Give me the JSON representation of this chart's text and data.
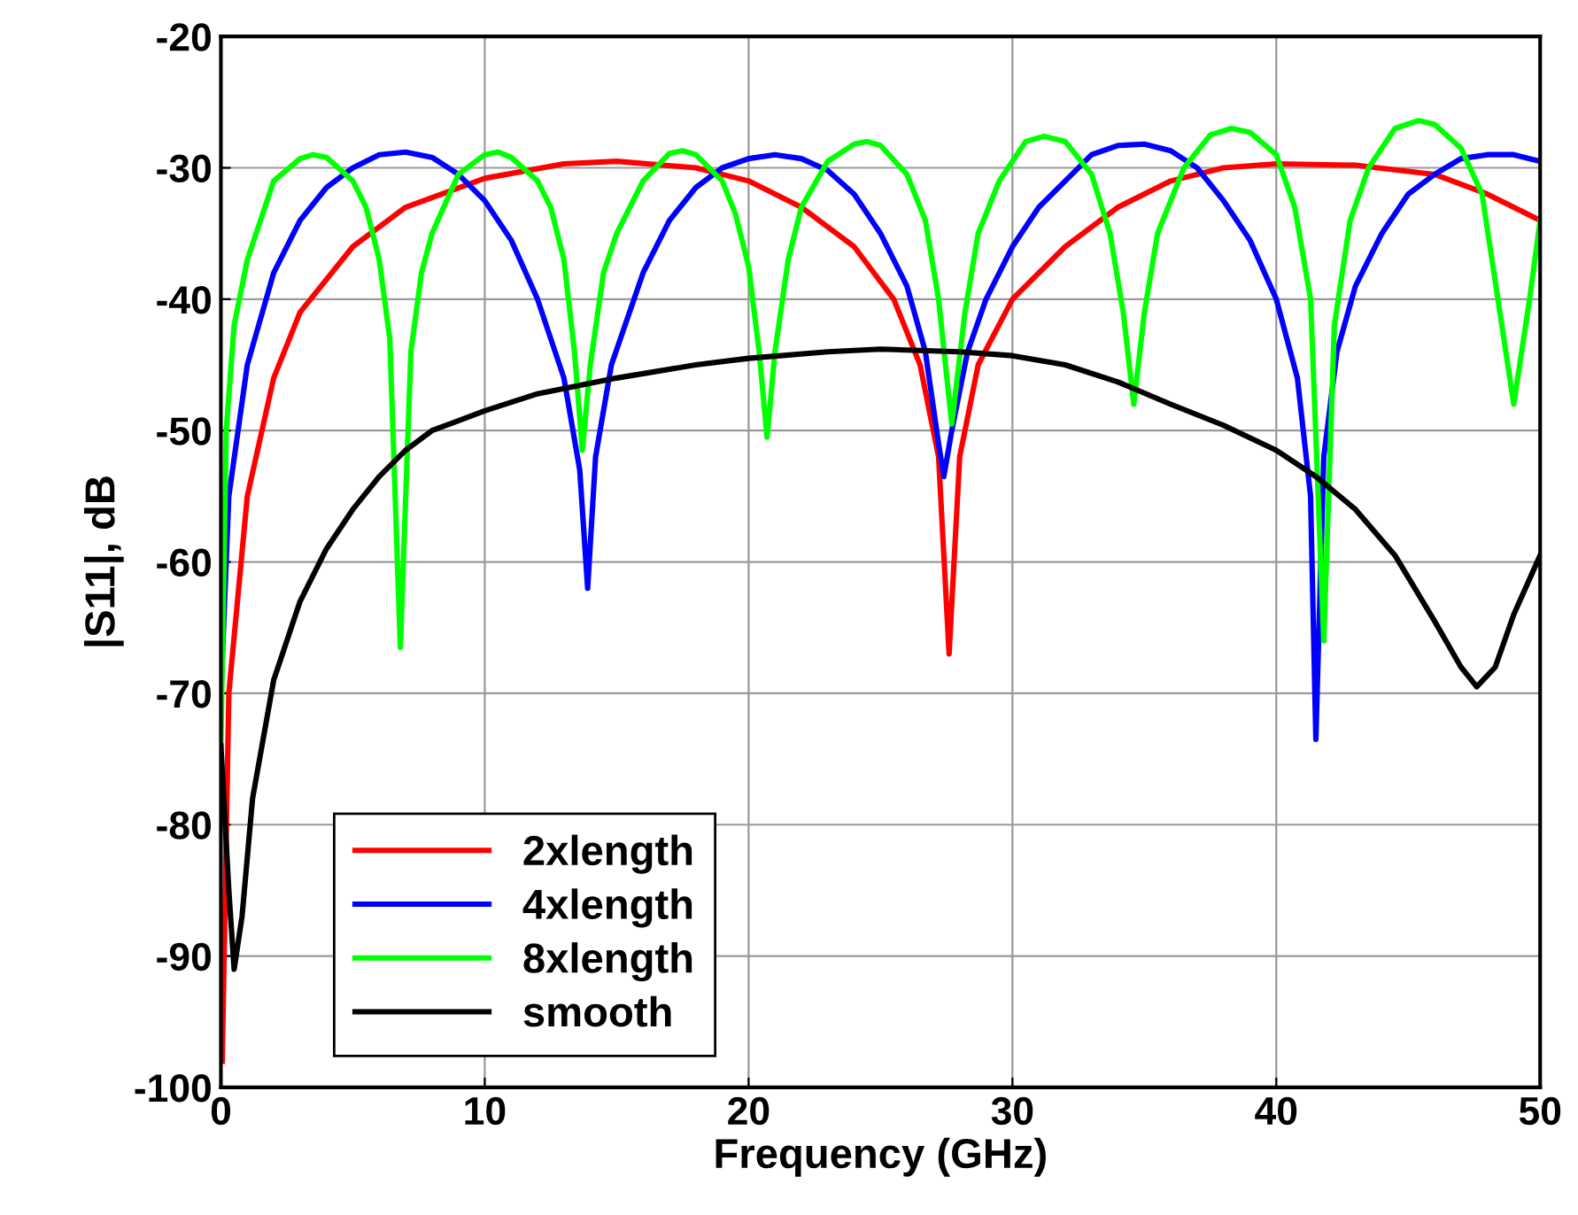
{
  "chart_data": {
    "type": "line",
    "xlabel": "Frequency (GHz)",
    "ylabel": "|S11|, dB",
    "xlim": [
      0,
      50
    ],
    "ylim": [
      -100,
      -20
    ],
    "xticks": [
      0,
      10,
      20,
      30,
      40,
      50
    ],
    "yticks": [
      -100,
      -90,
      -80,
      -70,
      -60,
      -50,
      -40,
      -30,
      -20
    ],
    "grid": true,
    "legend": "bottom left",
    "series": [
      {
        "name": "2xlength",
        "color": "#ff0000",
        "x": [
          0.05,
          0.3,
          1,
          2,
          3,
          5,
          7,
          10,
          13,
          15,
          18,
          20,
          22,
          24,
          25.5,
          26.5,
          27.2,
          27.6,
          28,
          28.7,
          30,
          32,
          34,
          36,
          38,
          40,
          43,
          46,
          48,
          50
        ],
        "values": [
          -98,
          -70,
          -55,
          -46,
          -41,
          -36,
          -33,
          -30.8,
          -29.7,
          -29.5,
          -30,
          -31,
          -33,
          -36,
          -40,
          -45,
          -52,
          -67,
          -52,
          -45,
          -40,
          -36,
          -33,
          -31,
          -30,
          -29.7,
          -29.8,
          -30.5,
          -32,
          -34
        ]
      },
      {
        "name": "4xlength",
        "color": "#0000ff",
        "x": [
          0,
          0.3,
          1,
          2,
          3,
          4,
          5,
          6,
          7,
          8,
          9,
          10,
          11,
          12,
          13,
          13.6,
          13.9,
          14.2,
          14.8,
          16,
          17,
          18,
          19,
          20,
          21,
          22,
          23,
          24,
          25,
          26,
          26.7,
          27.2,
          27.4,
          27.7,
          28.3,
          29,
          30,
          31,
          32,
          33,
          34,
          35,
          36,
          37,
          38,
          39,
          40,
          40.8,
          41.3,
          41.5,
          41.8,
          42.3,
          43,
          44,
          45,
          46,
          47,
          48,
          49,
          50
        ],
        "values": [
          -70,
          -55,
          -45,
          -38,
          -34,
          -31.5,
          -30,
          -29,
          -28.8,
          -29.2,
          -30.5,
          -32.5,
          -35.5,
          -40,
          -46,
          -53,
          -62,
          -52,
          -45,
          -38,
          -34,
          -31.5,
          -30,
          -29.3,
          -29,
          -29.3,
          -30.2,
          -32,
          -35,
          -39,
          -44,
          -51,
          -53.5,
          -50,
          -44,
          -40,
          -36,
          -33,
          -31,
          -29,
          -28.3,
          -28.2,
          -28.7,
          -30,
          -32.5,
          -35.5,
          -40,
          -46,
          -55,
          -73.5,
          -52,
          -44,
          -39,
          -35,
          -32,
          -30.5,
          -29.3,
          -29,
          -29,
          -29.5
        ]
      },
      {
        "name": "8xlength",
        "color": "#00ff00",
        "x": [
          0,
          0.2,
          0.5,
          1,
          1.5,
          2,
          3,
          3.5,
          4,
          5,
          5.5,
          6,
          6.4,
          6.8,
          7.2,
          7.6,
          8,
          9,
          10,
          10.5,
          11,
          12,
          12.5,
          13,
          13.4,
          13.7,
          14,
          14.5,
          15,
          16,
          17,
          17.5,
          18,
          19,
          19.5,
          20,
          20.4,
          20.7,
          21,
          21.5,
          22,
          23,
          24,
          24.5,
          25,
          26,
          26.7,
          27.2,
          27.7,
          28.2,
          28.7,
          29.5,
          30.5,
          31.2,
          32,
          33,
          33.7,
          34.2,
          34.6,
          35,
          35.5,
          36.5,
          37.5,
          38.3,
          39,
          40,
          40.7,
          41.3,
          41.8,
          42.2,
          42.8,
          43.5,
          44.5,
          45.4,
          46,
          47,
          47.8,
          48.4,
          49,
          49.6,
          50
        ],
        "values": [
          -74,
          -50,
          -42,
          -37,
          -34,
          -31,
          -29.3,
          -29,
          -29.2,
          -31,
          -33,
          -37,
          -43,
          -66.5,
          -44,
          -38,
          -35,
          -30.5,
          -29,
          -28.8,
          -29.2,
          -31,
          -33,
          -37,
          -44,
          -51.5,
          -45,
          -38,
          -35,
          -31,
          -28.9,
          -28.7,
          -29,
          -31,
          -33.5,
          -37.5,
          -44,
          -50.5,
          -44,
          -37,
          -33,
          -29.5,
          -28.2,
          -28,
          -28.3,
          -30.5,
          -34,
          -40,
          -49.5,
          -41,
          -35,
          -31,
          -28,
          -27.6,
          -28,
          -30.5,
          -35,
          -41,
          -48,
          -41,
          -35,
          -30,
          -27.5,
          -27,
          -27.3,
          -29,
          -33,
          -40,
          -66,
          -42,
          -34,
          -30,
          -27,
          -26.4,
          -26.7,
          -28.5,
          -32,
          -40,
          -48,
          -40,
          -34
        ]
      },
      {
        "name": "smooth",
        "color": "#000000",
        "x": [
          0,
          0.3,
          0.5,
          0.8,
          1.2,
          2,
          3,
          4,
          5,
          6,
          7,
          8,
          10,
          12,
          15,
          18,
          20,
          23,
          25,
          28,
          30,
          32,
          34,
          36,
          38,
          40,
          41.5,
          43,
          44.5,
          46,
          47,
          47.6,
          48.3,
          49,
          50
        ],
        "values": [
          -74,
          -85,
          -91,
          -87,
          -78,
          -69,
          -63,
          -59,
          -56,
          -53.5,
          -51.5,
          -50,
          -48.5,
          -47.2,
          -46,
          -45,
          -44.5,
          -44,
          -43.8,
          -44,
          -44.3,
          -45,
          -46.3,
          -48,
          -49.6,
          -51.5,
          -53.5,
          -56,
          -59.5,
          -64.5,
          -68,
          -69.5,
          -68,
          -64,
          -59.5
        ]
      }
    ]
  }
}
